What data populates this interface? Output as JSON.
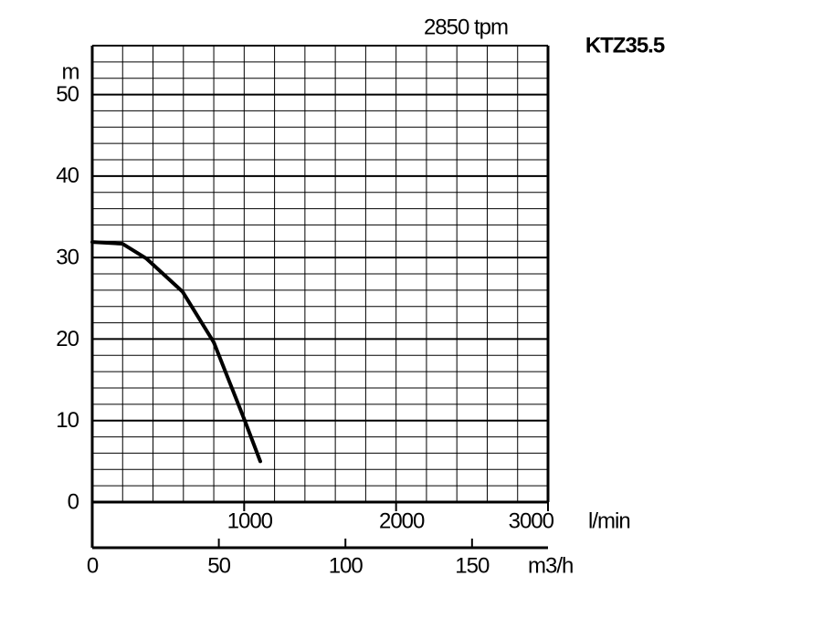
{
  "chart_data": {
    "type": "line",
    "title": "KTZ35.5",
    "subtitle": "2850 tpm",
    "y_label": "m",
    "x_label": "l/min",
    "x2_label": "m3/h",
    "series": [
      {
        "name": "KTZ35.5",
        "color": "#000000",
        "x": [
          0,
          198,
          355,
          595,
          800,
          1004,
          1106
        ],
        "values": [
          31.9,
          31.7,
          29.9,
          25.8,
          19.6,
          10,
          5
        ]
      }
    ],
    "xlim": [
      0,
      3000
    ],
    "xticks": [
      1000,
      2000,
      3000
    ],
    "x2lim": [
      0,
      180
    ],
    "x2ticks": [
      0,
      50,
      100,
      150
    ],
    "ylim": [
      0,
      56
    ],
    "yticks": [
      0,
      10,
      20,
      30,
      40,
      50
    ],
    "xgrid": [
      0,
      200,
      400,
      600,
      800,
      1000,
      1200,
      1400,
      1600,
      1800,
      2000,
      2200,
      2400,
      2600,
      2800,
      3000
    ],
    "ygrid": [
      0,
      2,
      4,
      6,
      8,
      10,
      12,
      14,
      16,
      18,
      20,
      22,
      24,
      26,
      28,
      30,
      32,
      34,
      36,
      38,
      40,
      42,
      44,
      46,
      48,
      50,
      52,
      54,
      56
    ],
    "grid": true
  }
}
